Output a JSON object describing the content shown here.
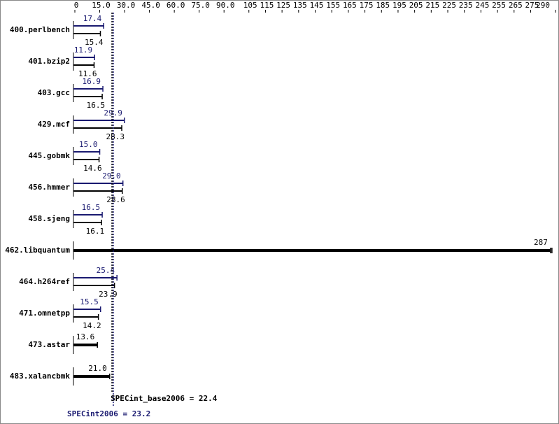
{
  "chart_data": {
    "type": "bar",
    "orientation": "horizontal",
    "categories": [
      "400.perlbench",
      "401.bzip2",
      "403.gcc",
      "429.mcf",
      "445.gobmk",
      "456.hmmer",
      "458.sjeng",
      "462.libquantum",
      "464.h264ref",
      "471.omnetpp",
      "473.astar",
      "483.xalancbmk"
    ],
    "series": [
      {
        "name": "peak",
        "color": "#191970",
        "values": [
          17.4,
          11.9,
          16.9,
          29.9,
          15.0,
          29.0,
          16.5,
          null,
          25.4,
          15.5,
          null,
          null
        ],
        "value_labels": [
          "17.4",
          "11.9",
          "16.9",
          "29.9",
          "15.0",
          "29.0",
          "16.5",
          null,
          "25.4",
          "15.5",
          null,
          null
        ]
      },
      {
        "name": "base",
        "color": "#000000",
        "values": [
          15.4,
          11.6,
          16.5,
          28.3,
          14.6,
          28.6,
          16.1,
          287,
          23.9,
          14.2,
          13.6,
          21.0
        ],
        "value_labels": [
          "15.4",
          "11.6",
          "16.5",
          "28.3",
          "14.6",
          "28.6",
          "16.1",
          "287",
          "23.9",
          "14.2",
          "13.6",
          "21.0"
        ]
      }
    ],
    "xlim": [
      0,
      290
    ],
    "xticks": [
      0,
      {
        "value": 15,
        "label": "15.0"
      },
      {
        "value": 30,
        "label": "30.0"
      },
      {
        "value": 45,
        "label": "45.0"
      },
      {
        "value": 60,
        "label": "60.0"
      },
      {
        "value": 75,
        "label": "75.0"
      },
      {
        "value": 90,
        "label": "90.0"
      },
      105,
      115,
      125,
      135,
      145,
      155,
      165,
      175,
      185,
      195,
      205,
      215,
      225,
      235,
      245,
      255,
      265,
      275,
      290
    ],
    "reference_lines": [
      {
        "value": 22.4,
        "label": "SPECint_base2006 = 22.4",
        "color": "#000000"
      },
      {
        "value": 23.2,
        "label": "SPECint2006 = 23.2",
        "color": "#191970"
      }
    ]
  }
}
